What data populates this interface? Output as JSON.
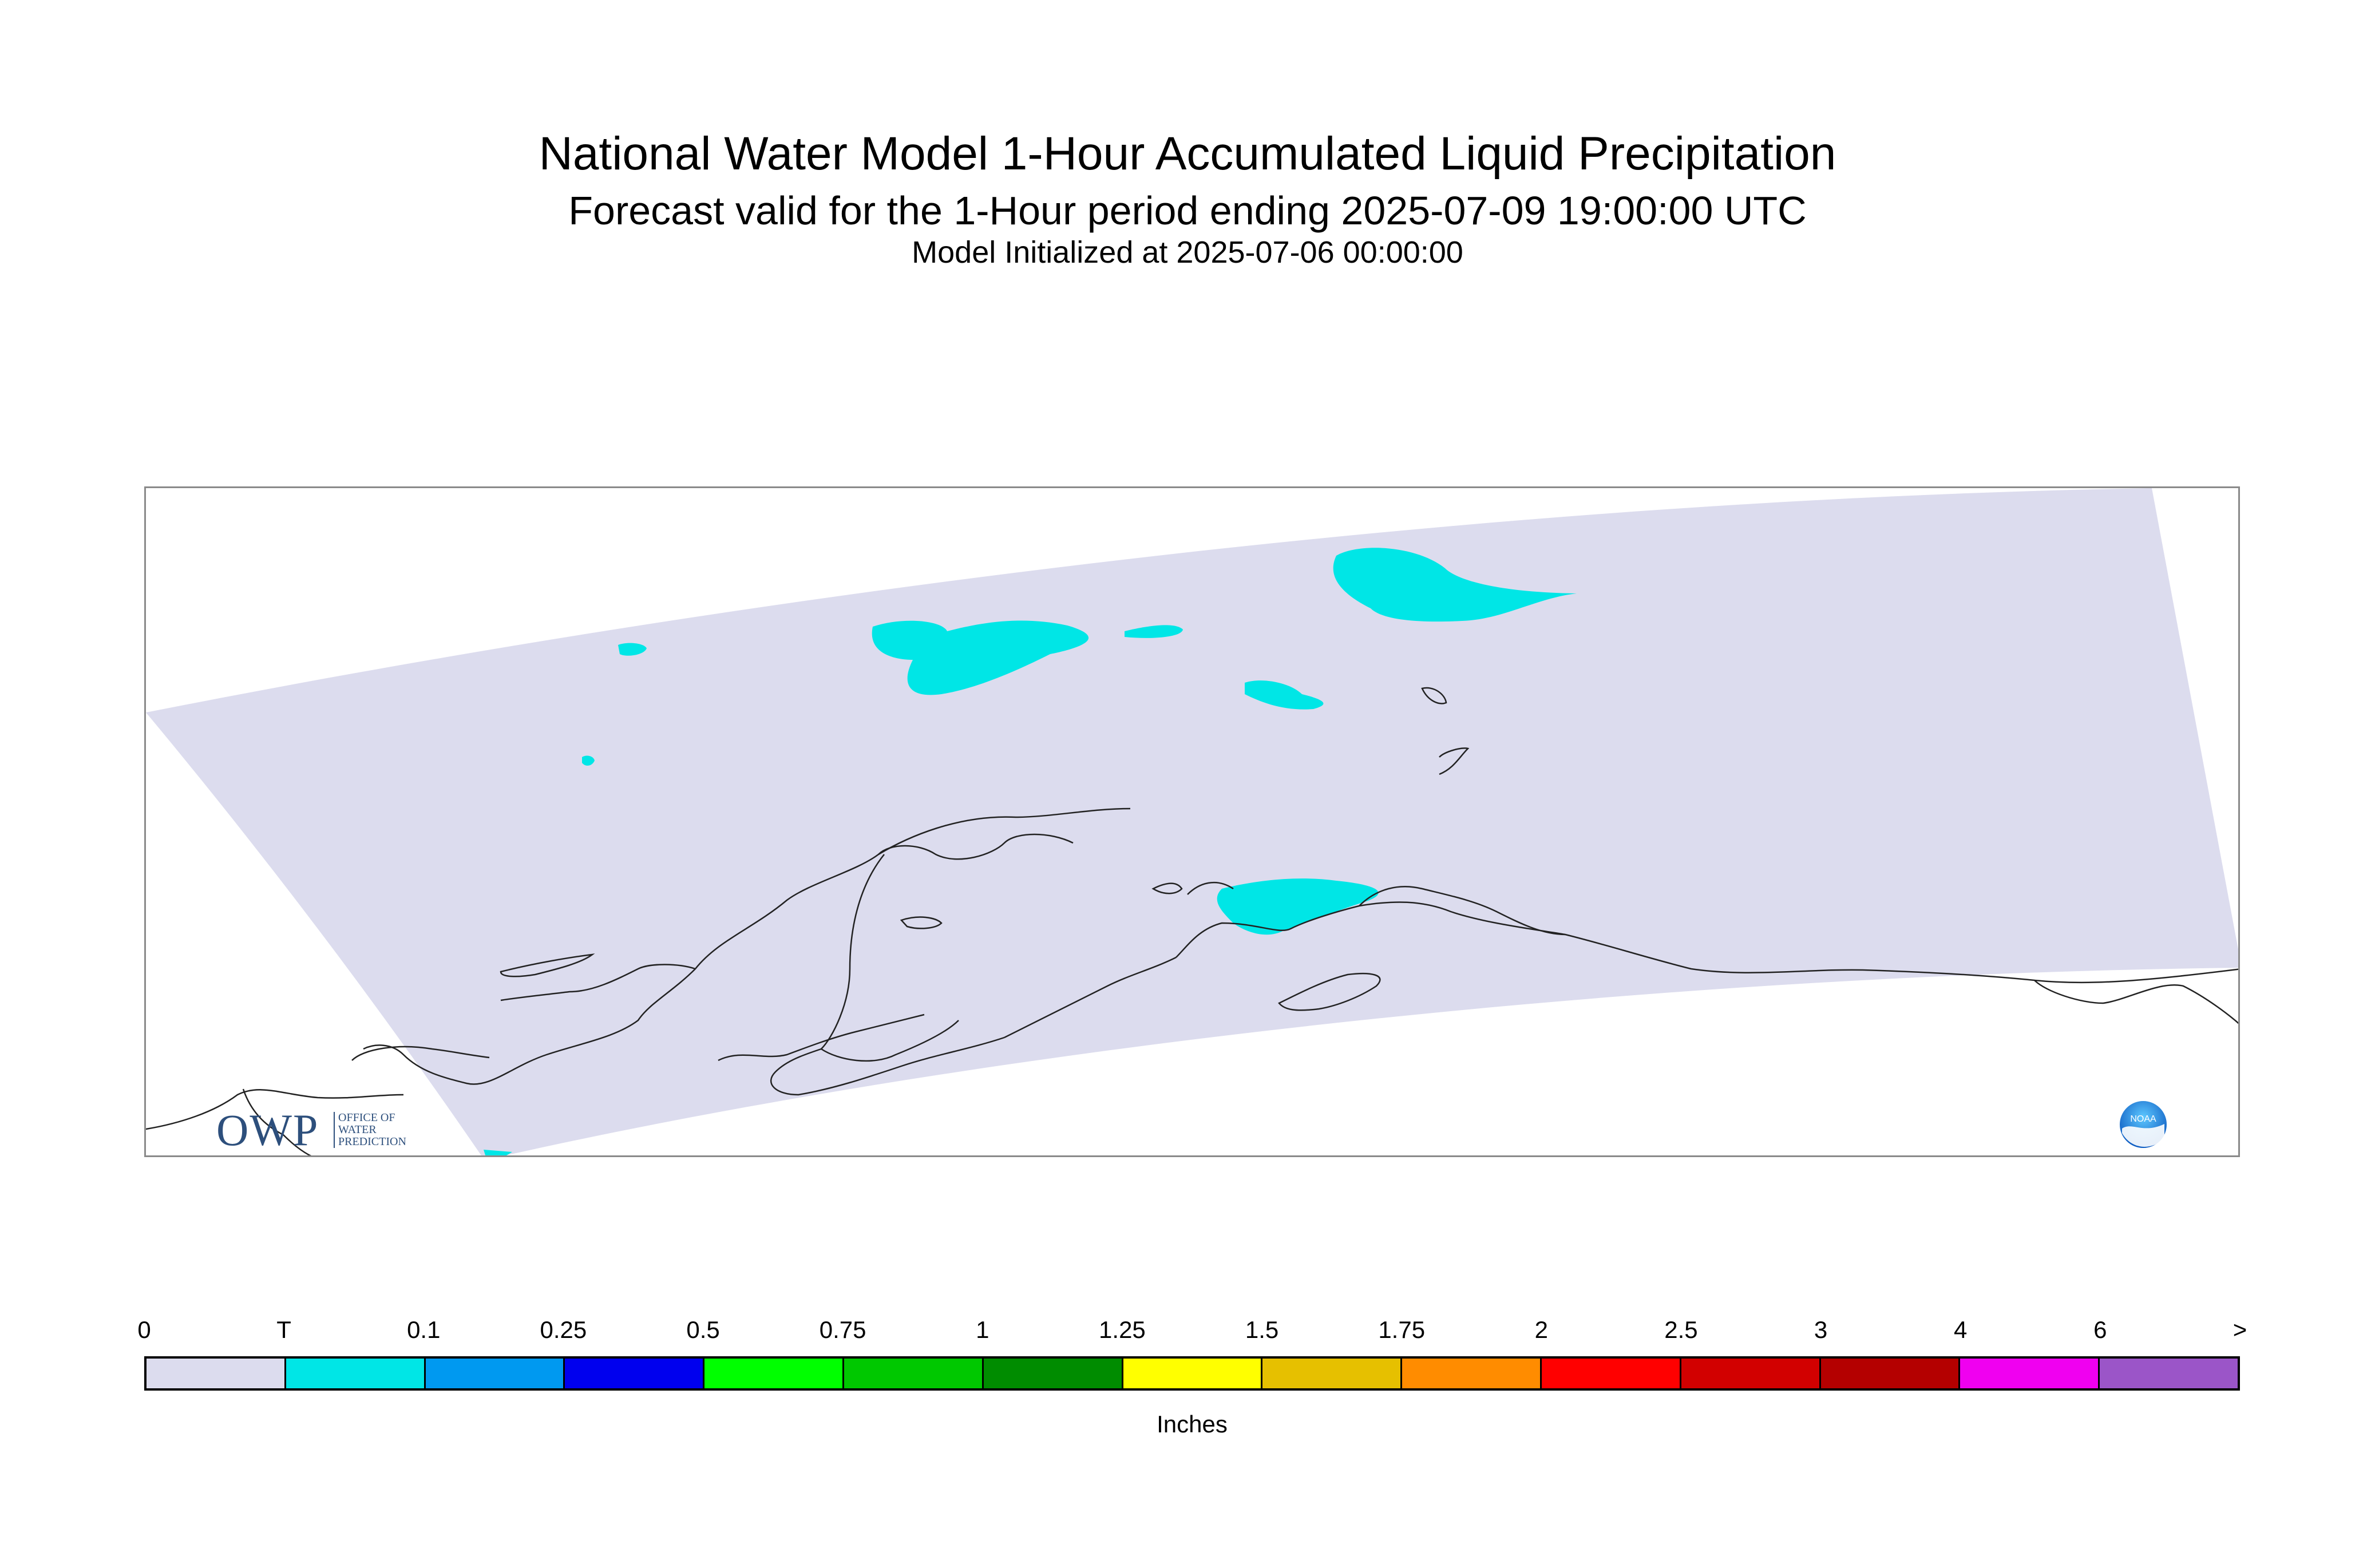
{
  "title": "National Water Model 1-Hour Accumulated Liquid Precipitation",
  "subtitle": "Forecast valid for the 1-Hour period ending 2025-07-09 19:00:00 UTC",
  "init_line": "Model Initialized at 2025-07-06 00:00:00",
  "logo": {
    "owp_text": "OWP",
    "owp_small": "OFFICE OF\nWATER\nPREDICTION",
    "noaa_text": "NOAA"
  },
  "colors": {
    "domain_fill": "#dcdcee",
    "trace_fill": "#00e6e6",
    "coastline": "#222222"
  },
  "legend": {
    "ticks": [
      "0",
      "T",
      "0.1",
      "0.25",
      "0.5",
      "0.75",
      "1",
      "1.25",
      "1.5",
      "1.75",
      "2",
      "2.5",
      "3",
      "4",
      "6",
      ">"
    ],
    "colors": [
      "#dcdcee",
      "#00e6e6",
      "#0099f0",
      "#0000ee",
      "#00ff00",
      "#00c800",
      "#008c00",
      "#ffff00",
      "#e6c000",
      "#ff8c00",
      "#ff0000",
      "#d20000",
      "#b40000",
      "#f000f0",
      "#9b55c8"
    ],
    "units": "Inches"
  }
}
